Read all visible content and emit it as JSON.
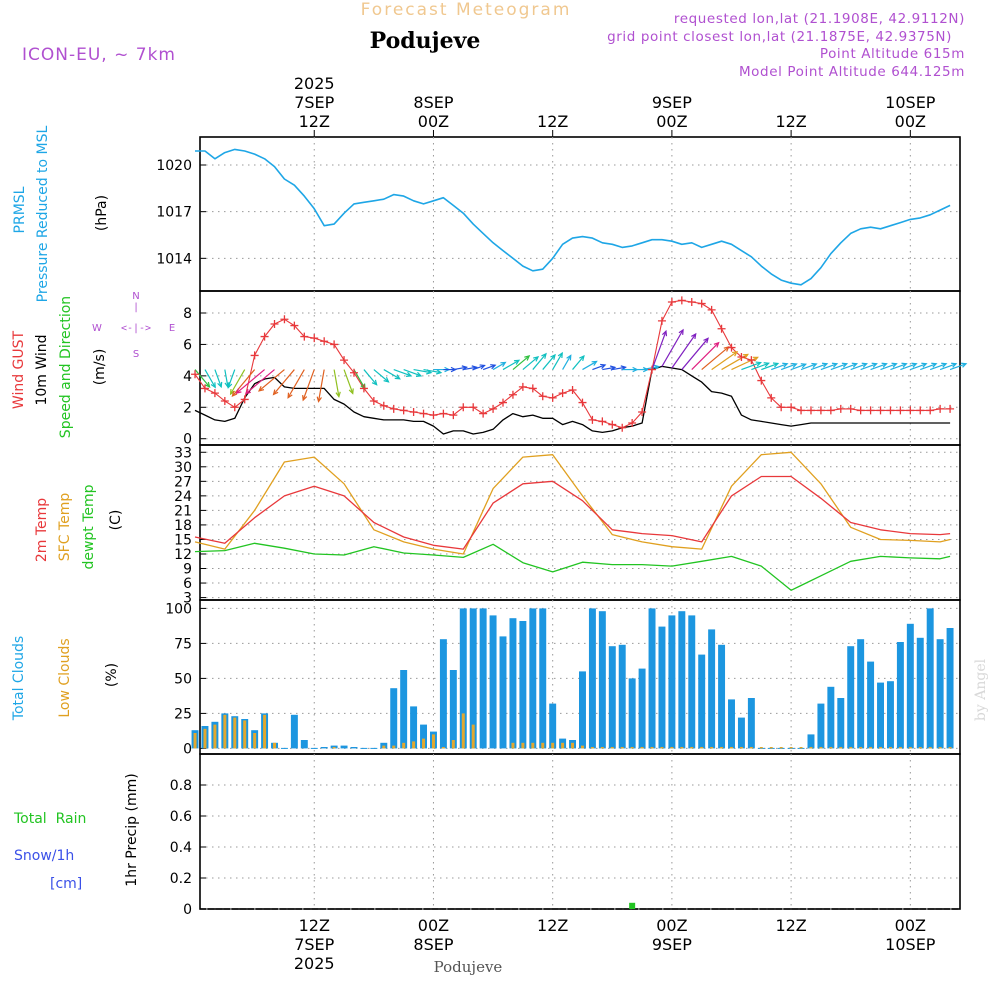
{
  "header": {
    "title": "Forecast Meteogram",
    "location": "Podujeve",
    "model": "ICON-EU, ~ 7km",
    "requested": "requested lon,lat (21.1908E, 42.9112N)",
    "gridpoint": "grid point closest lon,lat (21.1875E, 42.9375N)",
    "point_alt": "Point Altitude 615m",
    "model_alt": "Model Point Altitude 644.125m",
    "footer_location": "Podujeve",
    "credit": "by Angel"
  },
  "time_axis": {
    "top_labels": [
      {
        "lines": [
          "2025",
          "7SEP",
          "12Z"
        ],
        "hour": 12
      },
      {
        "lines": [
          "8SEP",
          "00Z"
        ],
        "hour": 24
      },
      {
        "lines": [
          "12Z"
        ],
        "hour": 36
      },
      {
        "lines": [
          "9SEP",
          "00Z"
        ],
        "hour": 48
      },
      {
        "lines": [
          "12Z"
        ],
        "hour": 60
      },
      {
        "lines": [
          "10SEP",
          "00Z"
        ],
        "hour": 72
      }
    ],
    "bottom_labels": [
      {
        "lines": [
          "12Z",
          "7SEP",
          "2025"
        ],
        "hour": 12
      },
      {
        "lines": [
          "00Z",
          "8SEP"
        ],
        "hour": 24
      },
      {
        "lines": [
          "12Z"
        ],
        "hour": 36
      },
      {
        "lines": [
          "00Z",
          "9SEP"
        ],
        "hour": 48
      },
      {
        "lines": [
          "12Z"
        ],
        "hour": 60
      },
      {
        "lines": [
          "00Z",
          "10SEP"
        ],
        "hour": 72
      }
    ]
  },
  "panels": {
    "pressure": {
      "label_lines": [
        "PRMSL",
        "Pressure Reduced to MSL"
      ],
      "unit": "(hPa)",
      "ticks": [
        1014,
        1017,
        1020
      ],
      "ylim": [
        1011.9,
        1021.8
      ]
    },
    "wind": {
      "label_lines": [
        "Wind GUST",
        "10m Wind",
        "Speed and Direction"
      ],
      "unit": "(m/s)",
      "ticks": [
        0,
        2,
        4,
        6,
        8
      ],
      "ylim": [
        -0.4,
        9.4
      ],
      "compass": {
        "n": "N",
        "s": "S",
        "e": "E",
        "w": "W",
        "ns_bar": "|",
        "ew_bar": "<-|->"
      }
    },
    "temperature": {
      "label_lines": [
        "2m Temp",
        "SFC Temp",
        "dewpt Temp"
      ],
      "unit": "(C)",
      "ticks": [
        3,
        6,
        9,
        12,
        15,
        18,
        21,
        24,
        27,
        30,
        33
      ],
      "ylim": [
        2.5,
        34.5
      ]
    },
    "clouds": {
      "label_lines": [
        "Total Clouds",
        "Low Clouds"
      ],
      "unit": "(%)",
      "ticks": [
        0,
        25,
        50,
        75,
        100
      ],
      "ylim": [
        -4,
        106
      ]
    },
    "precip": {
      "label_lines": [
        "Total  Rain",
        "Snow/1h",
        "[cm]"
      ],
      "axis_label": "1hr Precip (mm)",
      "ticks": [
        "0",
        "0.2",
        "0.4",
        "0.6",
        "0.8"
      ],
      "ylim": [
        0,
        1.0
      ]
    }
  },
  "colors": {
    "pressure": "#1ea6e6",
    "gust": "#e8383b",
    "wind": "#000000",
    "temp2m": "#e8383b",
    "sfc": "#e0a020",
    "dewpt": "#22c422",
    "total_clouds": "#1c96e0",
    "low_clouds": "#e0a830",
    "title": "#f0c890",
    "meta": "#b050d0",
    "label_green": "#22c422",
    "label_blue": "#3a50e8"
  },
  "chart_data": {
    "type": "line",
    "x_unit": "hours since 2025-09-07 00Z",
    "pressure": {
      "x": [
        0,
        1,
        2,
        3,
        4,
        5,
        6,
        7,
        8,
        9,
        10,
        11,
        12,
        13,
        14,
        15,
        16,
        17,
        18,
        19,
        20,
        21,
        22,
        23,
        24,
        25,
        26,
        27,
        28,
        29,
        30,
        31,
        32,
        33,
        34,
        35,
        36,
        37,
        38,
        39,
        40,
        41,
        42,
        43,
        44,
        45,
        46,
        47,
        48,
        49,
        50,
        51,
        52,
        53,
        54,
        55,
        56,
        57,
        58,
        59,
        60,
        61,
        62,
        63,
        64,
        65,
        66,
        67,
        68,
        69,
        70,
        71,
        72,
        73,
        74,
        75,
        76
      ],
      "values": [
        1020.9,
        1020.9,
        1020.4,
        1020.8,
        1021.0,
        1020.9,
        1020.7,
        1020.4,
        1019.9,
        1019.1,
        1018.7,
        1018.0,
        1017.2,
        1016.1,
        1016.2,
        1016.9,
        1017.5,
        1017.6,
        1017.7,
        1017.8,
        1018.1,
        1018.0,
        1017.7,
        1017.5,
        1017.7,
        1017.9,
        1017.4,
        1016.9,
        1016.2,
        1015.6,
        1015.0,
        1014.5,
        1014.0,
        1013.5,
        1013.2,
        1013.3,
        1014.0,
        1014.9,
        1015.3,
        1015.4,
        1015.3,
        1015.0,
        1014.9,
        1014.7,
        1014.8,
        1015.0,
        1015.2,
        1015.2,
        1015.1,
        1014.9,
        1015.0,
        1014.7,
        1014.9,
        1015.1,
        1014.9,
        1014.5,
        1014.1,
        1013.5,
        1013.0,
        1012.6,
        1012.4,
        1012.3,
        1012.7,
        1013.4,
        1014.3,
        1015.0,
        1015.6,
        1015.9,
        1016.0,
        1015.9,
        1016.1,
        1016.3,
        1016.5,
        1016.6,
        1016.8,
        1017.1,
        1017.4
      ]
    },
    "gust": {
      "x": [
        0,
        1,
        2,
        3,
        4,
        5,
        6,
        7,
        8,
        9,
        10,
        11,
        12,
        13,
        14,
        15,
        16,
        17,
        18,
        19,
        20,
        21,
        22,
        23,
        24,
        25,
        26,
        27,
        28,
        29,
        30,
        31,
        32,
        33,
        34,
        35,
        36,
        37,
        38,
        39,
        40,
        41,
        42,
        43,
        44,
        45,
        46,
        47,
        48,
        49,
        50,
        51,
        52,
        53,
        54,
        55,
        56,
        57,
        58,
        59,
        60,
        61,
        62,
        63,
        64,
        65,
        66,
        67,
        68,
        69,
        70,
        71,
        72,
        73,
        74,
        75,
        76
      ],
      "values": [
        4.1,
        3.2,
        2.9,
        2.4,
        2.0,
        2.5,
        5.3,
        6.5,
        7.3,
        7.6,
        7.2,
        6.5,
        6.4,
        6.2,
        6.0,
        5.0,
        4.2,
        3.2,
        2.4,
        2.1,
        1.9,
        1.8,
        1.7,
        1.6,
        1.5,
        1.6,
        1.5,
        2.0,
        2.0,
        1.6,
        1.9,
        2.3,
        2.8,
        3.3,
        3.2,
        2.7,
        2.6,
        2.9,
        3.1,
        2.3,
        1.2,
        1.1,
        0.9,
        0.7,
        1.0,
        1.7,
        4.4,
        7.5,
        8.7,
        8.8,
        8.7,
        8.6,
        8.2,
        7.0,
        5.8,
        5.2,
        5.0,
        3.7,
        2.6,
        2.0,
        2.0,
        1.8,
        1.8,
        1.8,
        1.8,
        1.9,
        1.9,
        1.8,
        1.8,
        1.8,
        1.8,
        1.8,
        1.8,
        1.8,
        1.8,
        1.9,
        1.9
      ]
    },
    "wind": {
      "x": [
        0,
        1,
        2,
        3,
        4,
        5,
        6,
        7,
        8,
        9,
        10,
        11,
        12,
        13,
        14,
        15,
        16,
        17,
        18,
        19,
        20,
        21,
        22,
        23,
        24,
        25,
        26,
        27,
        28,
        29,
        30,
        31,
        32,
        33,
        34,
        35,
        36,
        37,
        38,
        39,
        40,
        41,
        42,
        43,
        44,
        45,
        46,
        47,
        48,
        49,
        50,
        51,
        52,
        53,
        54,
        55,
        56,
        57,
        58,
        59,
        60,
        61,
        62,
        63,
        64,
        65,
        66,
        67,
        68,
        69,
        70,
        71,
        72,
        73,
        74,
        75,
        76
      ],
      "values": [
        1.8,
        1.5,
        1.2,
        1.1,
        1.3,
        2.6,
        3.5,
        3.8,
        3.9,
        3.3,
        3.2,
        3.2,
        3.2,
        3.2,
        2.5,
        2.2,
        1.7,
        1.4,
        1.3,
        1.2,
        1.2,
        1.2,
        1.1,
        1.1,
        0.8,
        0.3,
        0.5,
        0.5,
        0.3,
        0.4,
        0.6,
        1.2,
        1.6,
        1.4,
        1.5,
        1.3,
        1.3,
        0.9,
        1.1,
        0.9,
        0.5,
        0.4,
        0.5,
        0.7,
        0.8,
        1.0,
        4.4,
        4.6,
        4.5,
        4.4,
        4.0,
        3.6,
        3.0,
        2.9,
        2.7,
        1.5,
        1.2,
        1.1,
        1.0,
        0.9,
        0.8,
        0.9,
        1.0,
        1.0,
        1.0,
        1.0,
        1.0,
        1.0,
        1.0,
        1.0,
        1.0,
        1.0,
        1.0,
        1.0,
        1.0,
        1.0,
        1.0
      ]
    },
    "temp2m": {
      "x": [
        0,
        3,
        6,
        9,
        12,
        15,
        18,
        21,
        24,
        27,
        30,
        33,
        36,
        39,
        42,
        45,
        48,
        51,
        54,
        57,
        60,
        63,
        66,
        69,
        72,
        75,
        76
      ],
      "values": [
        15.5,
        14.2,
        19.5,
        24.0,
        26.0,
        24.0,
        18.5,
        15.5,
        13.8,
        13.0,
        22.5,
        26.5,
        27.0,
        23.0,
        17.0,
        16.2,
        15.8,
        14.5,
        24.0,
        28.0,
        28.0,
        23.5,
        18.5,
        17.0,
        16.2,
        16.0,
        16.2
      ]
    },
    "sfc": {
      "x": [
        0,
        3,
        6,
        9,
        12,
        15,
        18,
        21,
        24,
        27,
        30,
        33,
        36,
        39,
        42,
        45,
        48,
        51,
        54,
        57,
        60,
        63,
        66,
        69,
        72,
        75,
        76
      ],
      "values": [
        14.5,
        13.0,
        21.0,
        31.0,
        32.0,
        26.5,
        17.0,
        14.5,
        13.0,
        12.0,
        25.5,
        32.0,
        32.5,
        24.0,
        16.0,
        14.5,
        13.5,
        13.0,
        26.0,
        32.5,
        33.0,
        26.5,
        17.5,
        15.0,
        14.8,
        14.5,
        15.0
      ]
    },
    "dewpt": {
      "x": [
        0,
        3,
        6,
        9,
        12,
        15,
        18,
        21,
        24,
        27,
        30,
        33,
        36,
        39,
        42,
        45,
        48,
        51,
        54,
        57,
        60,
        61,
        63,
        66,
        69,
        72,
        75,
        76
      ],
      "values": [
        12.5,
        12.7,
        14.2,
        13.2,
        12.0,
        11.8,
        13.5,
        12.2,
        11.8,
        11.3,
        14.0,
        10.2,
        8.3,
        10.3,
        9.8,
        9.8,
        9.5,
        10.5,
        11.5,
        9.5,
        4.5,
        5.5,
        7.5,
        10.5,
        11.5,
        11.2,
        11.0,
        11.5
      ]
    },
    "wind_arrows": {
      "x": [
        0,
        1,
        2,
        3,
        4,
        5,
        6,
        7,
        8,
        9,
        10,
        11,
        12,
        13,
        14,
        15,
        16,
        17,
        18,
        19,
        20,
        21,
        22,
        23,
        24,
        25,
        26,
        27,
        28,
        29,
        30,
        31,
        32,
        33,
        34,
        35,
        36,
        37,
        38,
        39,
        40,
        41,
        42,
        43,
        44,
        45,
        46,
        47,
        48,
        49,
        50,
        51,
        52,
        53,
        54,
        55,
        56,
        57,
        58,
        59,
        60,
        61,
        62,
        63,
        64,
        65,
        66,
        67,
        68,
        69,
        70,
        71,
        72,
        73,
        74,
        75,
        76
      ],
      "speed": [
        1.8,
        1.5,
        1.2,
        1.1,
        1.3,
        2.6,
        3.5,
        3.8,
        3.9,
        3.3,
        3.2,
        3.2,
        3.2,
        3.2,
        2.5,
        2.2,
        1.7,
        1.4,
        1.3,
        1.2,
        1.2,
        1.2,
        1.1,
        1.1,
        0.8,
        0.3,
        0.5,
        0.5,
        0.3,
        0.4,
        0.6,
        1.2,
        1.6,
        1.4,
        1.5,
        1.3,
        1.3,
        0.9,
        1.1,
        0.9,
        0.5,
        0.4,
        0.5,
        0.7,
        0.8,
        1.0,
        4.4,
        4.6,
        4.5,
        4.4,
        4.0,
        3.6,
        3.0,
        2.9,
        2.7,
        1.5,
        1.2,
        1.1,
        1.0,
        0.9,
        0.8,
        0.9,
        1.0,
        1.0,
        1.0,
        1.0,
        1.0,
        1.0,
        1.0,
        1.0,
        1.0,
        1.0,
        1.0,
        1.0,
        1.0,
        1.0,
        1.0
      ],
      "direction_deg": [
        320,
        330,
        340,
        350,
        20,
        30,
        40,
        50,
        50,
        50,
        40,
        30,
        20,
        10,
        350,
        340,
        330,
        320,
        310,
        300,
        290,
        290,
        280,
        280,
        270,
        270,
        260,
        260,
        250,
        250,
        240,
        240,
        230,
        230,
        220,
        220,
        210,
        210,
        220,
        240,
        250,
        260,
        260,
        270,
        270,
        260,
        200,
        210,
        215,
        220,
        225,
        230,
        235,
        240,
        245,
        250,
        250,
        250,
        250,
        250,
        250,
        250,
        250,
        250,
        250,
        250,
        250,
        250,
        250,
        250,
        250,
        250,
        250,
        250,
        250,
        250,
        250
      ]
    },
    "total_clouds": {
      "x": [
        0,
        1,
        2,
        3,
        4,
        5,
        6,
        7,
        8,
        9,
        10,
        11,
        12,
        13,
        14,
        15,
        16,
        17,
        18,
        19,
        20,
        21,
        22,
        23,
        24,
        25,
        26,
        27,
        28,
        29,
        30,
        31,
        32,
        33,
        34,
        35,
        36,
        37,
        38,
        39,
        40,
        41,
        42,
        43,
        44,
        45,
        46,
        47,
        48,
        49,
        50,
        51,
        52,
        53,
        54,
        55,
        56,
        57,
        58,
        59,
        60,
        61,
        62,
        63,
        64,
        65,
        66,
        67,
        68,
        69,
        70,
        71,
        72,
        73,
        74,
        75,
        76
      ],
      "values": [
        13,
        16,
        19,
        25,
        23,
        21,
        13,
        25,
        4,
        0,
        24,
        6,
        0,
        1,
        2,
        2,
        1,
        0,
        0,
        4,
        43,
        56,
        30,
        17,
        12,
        78,
        56,
        100,
        100,
        100,
        95,
        80,
        93,
        91,
        100,
        100,
        32,
        7,
        6,
        55,
        100,
        98,
        73,
        74,
        50,
        57,
        100,
        87,
        95,
        98,
        95,
        67,
        85,
        74,
        35,
        22,
        36,
        0,
        0,
        0,
        0,
        0,
        10,
        32,
        44,
        36,
        73,
        78,
        62,
        47,
        48,
        76,
        89,
        79,
        100,
        78,
        86
      ]
    },
    "low_clouds": {
      "x": [
        0,
        1,
        2,
        3,
        4,
        5,
        6,
        7,
        8,
        9,
        10,
        11,
        12,
        13,
        14,
        15,
        16,
        17,
        18,
        19,
        20,
        21,
        22,
        23,
        24,
        25,
        26,
        27,
        28,
        29,
        30,
        31,
        32,
        33,
        34,
        35,
        36,
        37,
        38,
        39,
        40,
        41,
        42,
        43,
        44,
        45,
        46,
        47,
        48,
        49,
        50,
        51,
        52,
        53,
        54,
        55,
        56,
        57,
        58,
        59,
        60,
        61,
        62,
        63,
        64,
        65,
        66,
        67,
        68,
        69,
        70,
        71,
        72,
        73,
        74,
        75,
        76
      ],
      "values": [
        11,
        14,
        17,
        24,
        22,
        20,
        11,
        24,
        4,
        0,
        0,
        0,
        0,
        0,
        1,
        0,
        0,
        0,
        0,
        2,
        2,
        4,
        5,
        7,
        10,
        1,
        6,
        25,
        17,
        0,
        0,
        0,
        4,
        4,
        4,
        4,
        4,
        4,
        4,
        2,
        1,
        1,
        1,
        1,
        1,
        1,
        1,
        1,
        1,
        1,
        1,
        1,
        1,
        1,
        1,
        1,
        1,
        1,
        1,
        1,
        1,
        1,
        1,
        1,
        1,
        1,
        1,
        1,
        1,
        1,
        1,
        1,
        1,
        1,
        1,
        1,
        1
      ]
    },
    "precip": {
      "x": [
        44
      ],
      "values": [
        0.04
      ]
    }
  }
}
